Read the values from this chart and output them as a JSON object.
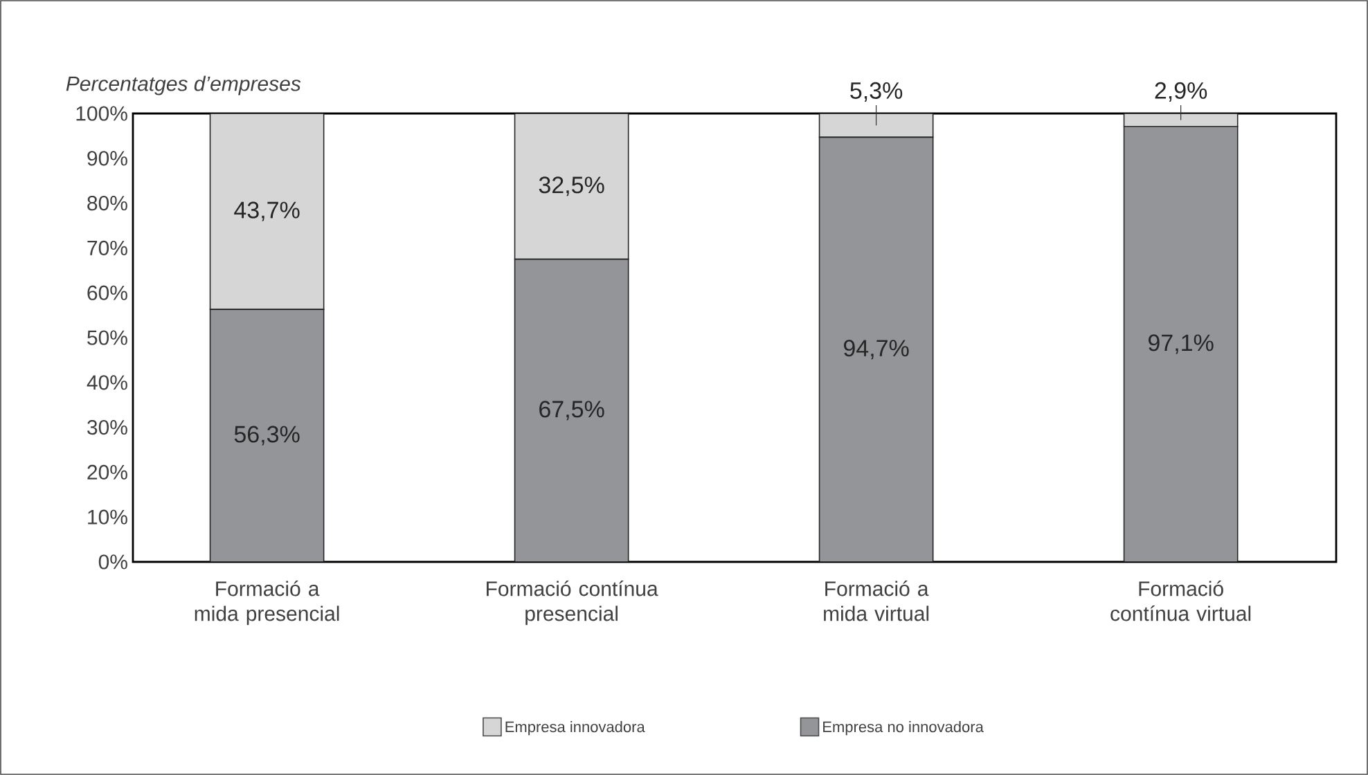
{
  "chart_data": {
    "type": "bar",
    "stacked": true,
    "ylabel": "Percentatges d’empreses",
    "categories": [
      "Formació a mida presencial",
      "Formació contínua presencial",
      "Formació a mida virtual",
      "Formació contínua virtual"
    ],
    "series": [
      {
        "name": "Empresa no innovadora",
        "color": "#939598",
        "values": [
          56.3,
          67.5,
          94.7,
          97.1
        ],
        "value_labels": [
          "56,3%",
          "67,5%",
          "94,7%",
          "97,1%"
        ]
      },
      {
        "name": "Empresa innovadora",
        "color": "#d6d6d6",
        "values": [
          43.7,
          32.5,
          5.3,
          2.9
        ],
        "value_labels": [
          "43,7%",
          "32,5%",
          "5,3%",
          "2,9%"
        ]
      }
    ],
    "ylim": [
      0,
      100
    ],
    "yticks": [
      {
        "value": 0,
        "label": "0%"
      },
      {
        "value": 10,
        "label": "10%"
      },
      {
        "value": 20,
        "label": "20%"
      },
      {
        "value": 30,
        "label": "30%"
      },
      {
        "value": 40,
        "label": "40%"
      },
      {
        "value": 50,
        "label": "50%"
      },
      {
        "value": 60,
        "label": "60%"
      },
      {
        "value": 70,
        "label": "70%"
      },
      {
        "value": 80,
        "label": "80%"
      },
      {
        "value": 90,
        "label": "90%"
      },
      {
        "value": 100,
        "label": "100%"
      }
    ],
    "legend": "bottom"
  }
}
